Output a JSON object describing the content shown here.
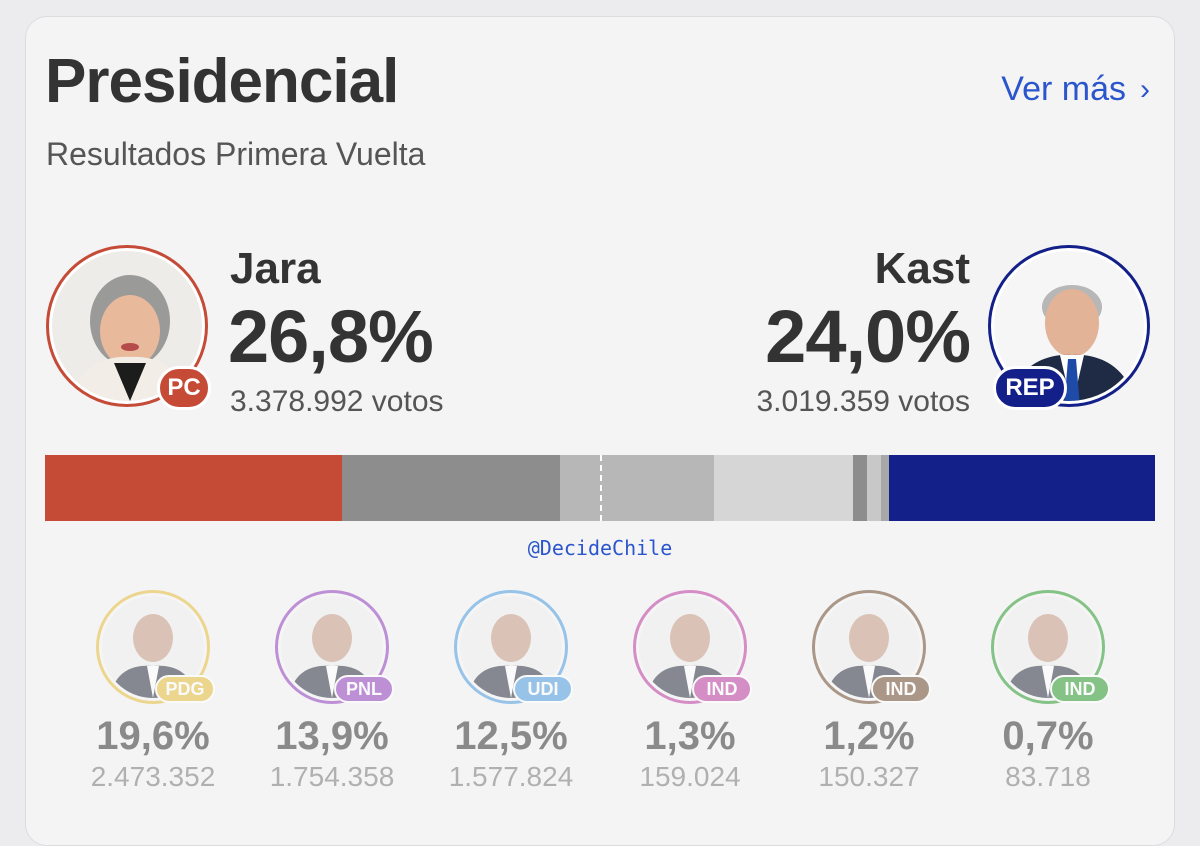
{
  "header": {
    "title": "Presidencial",
    "subtitle": "Resultados Primera Vuelta",
    "ver_mas": "Ver más"
  },
  "leaders": {
    "left": {
      "name": "Jara",
      "pct": "26,8%",
      "votes": "3.378.992 votos",
      "party": "PC",
      "color": "#c54b37"
    },
    "right": {
      "name": "Kast",
      "pct": "24,0%",
      "votes": "3.019.359 votos",
      "party": "REP",
      "color": "#14208a"
    }
  },
  "bar": {
    "segments": [
      {
        "candidate": "Jara",
        "share": 26.8,
        "color": "#c54b37"
      },
      {
        "candidate": "PDG",
        "share": 19.6,
        "color": "#8d8d8d"
      },
      {
        "candidate": "PNL",
        "share": 13.9,
        "color": "#b7b7b7"
      },
      {
        "candidate": "UDI",
        "share": 12.5,
        "color": "#d6d6d6"
      },
      {
        "candidate": "IND1",
        "share": 1.3,
        "color": "#8d8d8d"
      },
      {
        "candidate": "IND2",
        "share": 1.2,
        "color": "#c8c8c8"
      },
      {
        "candidate": "IND3",
        "share": 0.7,
        "color": "#a8a8a8"
      },
      {
        "candidate": "Kast",
        "share": 24.0,
        "color": "#14208a"
      }
    ]
  },
  "watermark": "@DecideChile",
  "candidates": [
    {
      "party": "PDG",
      "pct": "19,6%",
      "votes": "2.473.352",
      "color": "#e8c34a"
    },
    {
      "party": "PNL",
      "pct": "13,9%",
      "votes": "1.754.358",
      "color": "#9a4fc2"
    },
    {
      "party": "UDI",
      "pct": "12,5%",
      "votes": "1.577.824",
      "color": "#5aa3e0"
    },
    {
      "party": "IND",
      "pct": "1,3%",
      "votes": "159.024",
      "color": "#c24aa8"
    },
    {
      "party": "IND",
      "pct": "1,2%",
      "votes": "150.327",
      "color": "#7a5a3f"
    },
    {
      "party": "IND",
      "pct": "0,7%",
      "votes": "83.718",
      "color": "#3ba43b"
    }
  ]
}
